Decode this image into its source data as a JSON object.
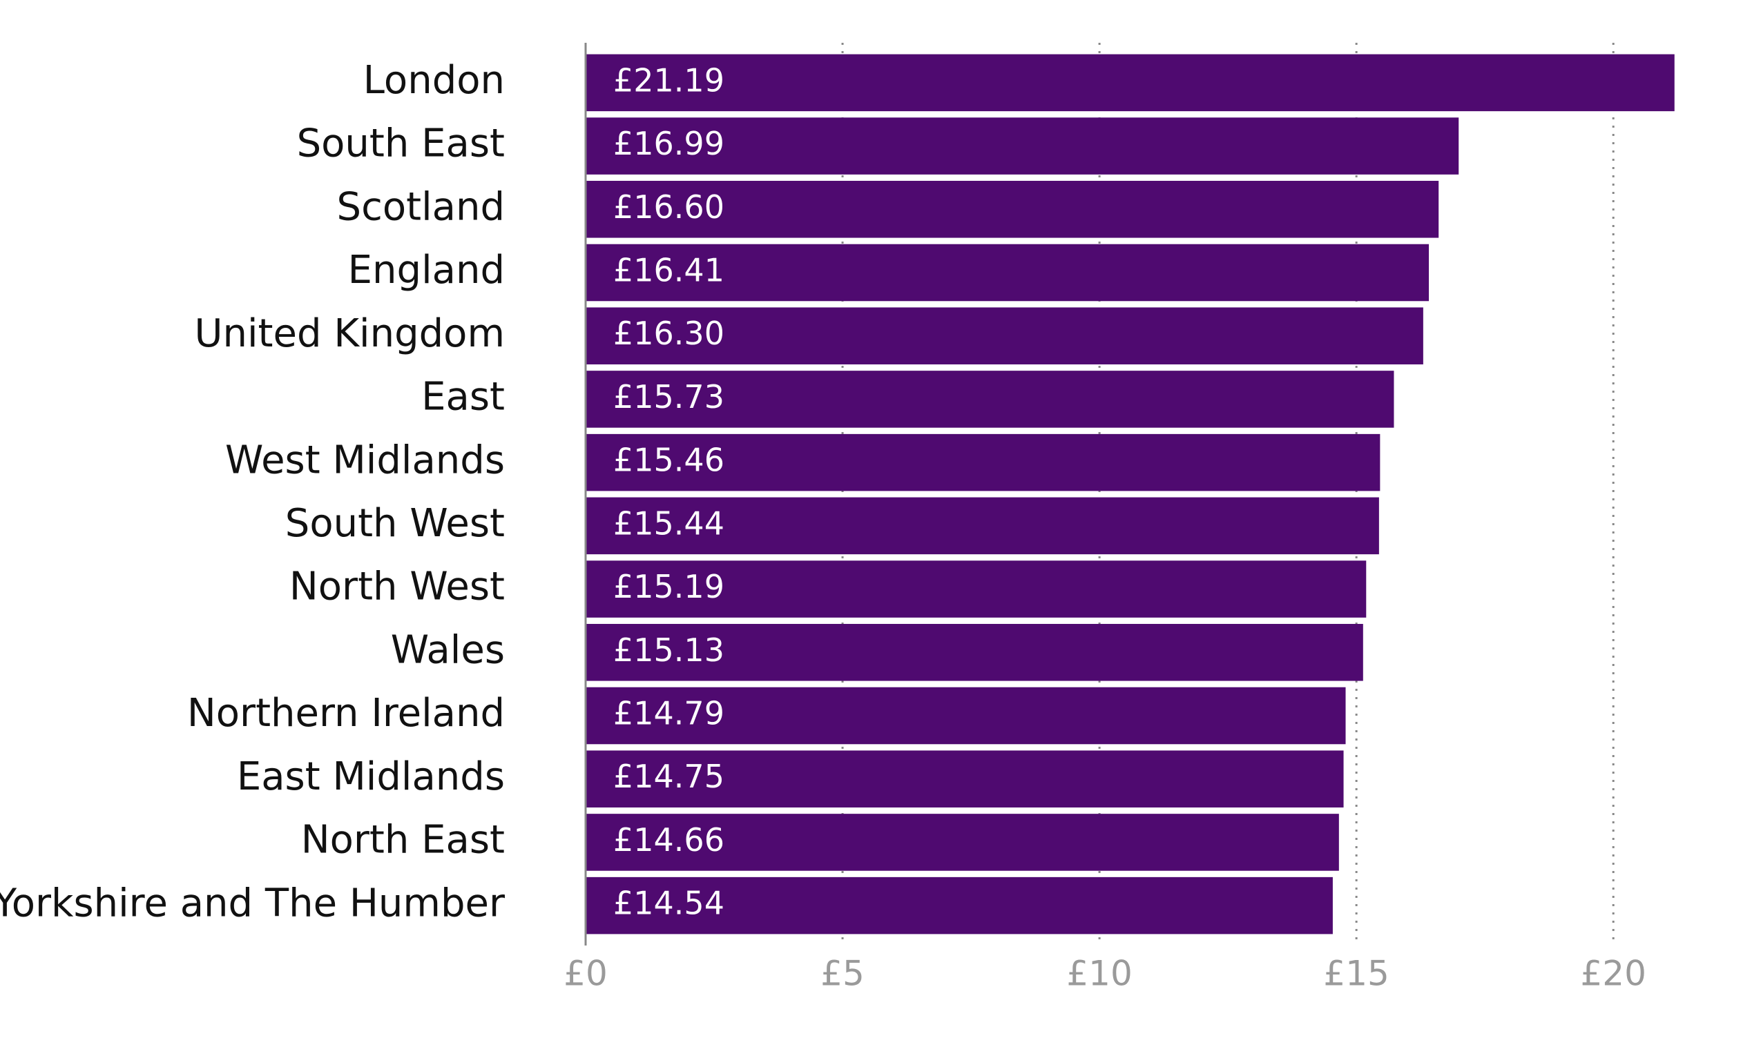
{
  "chart_data": {
    "type": "hbar",
    "categories": [
      "London",
      "South East",
      "Scotland",
      "England",
      "United Kingdom",
      "East",
      "West Midlands",
      "South West",
      "North West",
      "Wales",
      "Northern Ireland",
      "East Midlands",
      "North East",
      "Yorkshire and The Humber"
    ],
    "values": [
      21.19,
      16.99,
      16.6,
      16.41,
      16.3,
      15.73,
      15.46,
      15.44,
      15.19,
      15.13,
      14.79,
      14.75,
      14.66,
      14.54
    ],
    "value_labels": [
      "£21.19",
      "£16.99",
      "£16.60",
      "£16.41",
      "£16.30",
      "£15.73",
      "£15.46",
      "£15.44",
      "£15.19",
      "£15.13",
      "£14.79",
      "£14.75",
      "£14.66",
      "£14.54"
    ],
    "color": "#4f0a70",
    "xlim": [
      0,
      22
    ],
    "xticks": [
      {
        "value": 0,
        "label": "£0"
      },
      {
        "value": 5,
        "label": "£5"
      },
      {
        "value": 10,
        "label": "£10"
      },
      {
        "value": 15,
        "label": "£15"
      },
      {
        "value": 20,
        "label": "£20"
      }
    ],
    "grid": true
  }
}
